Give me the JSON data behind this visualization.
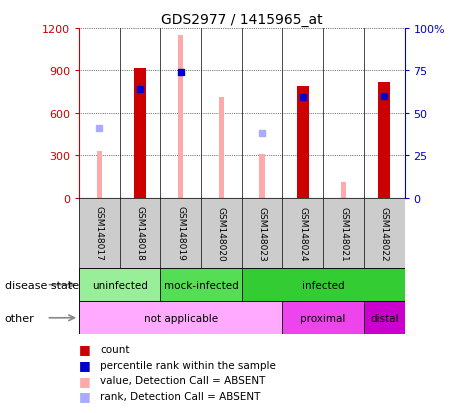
{
  "title": "GDS2977 / 1415965_at",
  "samples": [
    "GSM148017",
    "GSM148018",
    "GSM148019",
    "GSM148020",
    "GSM148023",
    "GSM148024",
    "GSM148021",
    "GSM148022"
  ],
  "count_values": [
    null,
    916,
    null,
    null,
    null,
    790,
    null,
    820
  ],
  "count_color": "#cc0000",
  "absent_value_values": [
    330,
    null,
    1150,
    710,
    310,
    null,
    110,
    null
  ],
  "absent_value_color": "#ffaaaa",
  "absent_rank_values": [
    490,
    null,
    null,
    null,
    460,
    null,
    null,
    null
  ],
  "absent_rank_color": "#aaaaff",
  "percentile_rank_values": [
    null,
    770,
    890,
    null,
    null,
    710,
    null,
    720
  ],
  "percentile_rank_color": "#0000cc",
  "ylim_left": [
    0,
    1200
  ],
  "ylim_right": [
    0,
    100
  ],
  "yticks_left": [
    0,
    300,
    600,
    900,
    1200
  ],
  "yticks_right": [
    0,
    25,
    50,
    75,
    100
  ],
  "disease_state_groups": [
    {
      "label": "uninfected",
      "start": 0,
      "end": 2,
      "color": "#99ee99"
    },
    {
      "label": "mock-infected",
      "start": 2,
      "end": 4,
      "color": "#55dd55"
    },
    {
      "label": "infected",
      "start": 4,
      "end": 8,
      "color": "#33cc33"
    }
  ],
  "other_groups": [
    {
      "label": "not applicable",
      "start": 0,
      "end": 5,
      "color": "#ffaaff"
    },
    {
      "label": "proximal",
      "start": 5,
      "end": 7,
      "color": "#ee44ee"
    },
    {
      "label": "distal",
      "start": 7,
      "end": 8,
      "color": "#cc00cc"
    }
  ],
  "row1_label": "disease state",
  "row2_label": "other",
  "legend_items": [
    {
      "label": "count",
      "color": "#cc0000"
    },
    {
      "label": "percentile rank within the sample",
      "color": "#0000cc"
    },
    {
      "label": "value, Detection Call = ABSENT",
      "color": "#ffaaaa"
    },
    {
      "label": "rank, Detection Call = ABSENT",
      "color": "#aaaaff"
    }
  ],
  "bg_color": "#ffffff",
  "tick_label_bg": "#cccccc",
  "left_label_color": "#888888"
}
